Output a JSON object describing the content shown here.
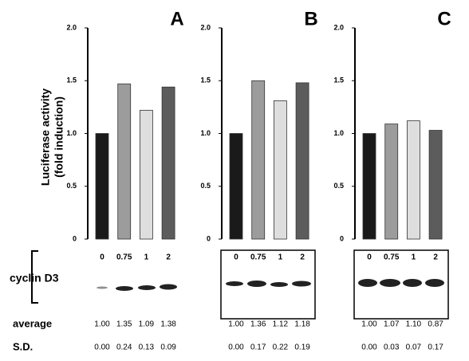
{
  "chart_data": [
    {
      "type": "bar",
      "panel": "A",
      "ylabel": [
        "Luciferase activity",
        "(fold induction)"
      ],
      "categories": [
        "0",
        "0.75",
        "1",
        "2"
      ],
      "values": [
        1.0,
        1.47,
        1.22,
        1.44
      ],
      "colors": [
        "#1a1a1a",
        "#9c9c9c",
        "#dedede",
        "#5c5c5c"
      ],
      "ylim": [
        0,
        2
      ],
      "yticks": [
        0,
        0.5,
        {
          "value": 1,
          "label": "1.0"
        },
        1.5,
        {
          "value": 2,
          "label": "2.0"
        }
      ]
    },
    {
      "type": "bar",
      "panel": "B",
      "categories": [
        "0",
        "0.75",
        "1",
        "2"
      ],
      "values": [
        1.0,
        1.5,
        1.31,
        1.48
      ],
      "colors": [
        "#1a1a1a",
        "#9c9c9c",
        "#dedede",
        "#5c5c5c"
      ],
      "ylim": [
        0,
        2
      ],
      "yticks": [
        0,
        0.5,
        {
          "value": 1,
          "label": "1.0"
        },
        1.5,
        {
          "value": 2,
          "label": "2.0"
        }
      ]
    },
    {
      "type": "bar",
      "panel": "C",
      "categories": [
        "0",
        "0.75",
        "1",
        "2"
      ],
      "values": [
        1.0,
        1.09,
        1.12,
        1.03
      ],
      "colors": [
        "#1a1a1a",
        "#9c9c9c",
        "#dedede",
        "#5c5c5c"
      ],
      "ylim": [
        0,
        2
      ],
      "yticks": [
        0,
        0.5,
        {
          "value": 1,
          "label": "1.0"
        },
        1.5,
        {
          "value": 2,
          "label": "2.0"
        }
      ]
    }
  ],
  "blot_label": "cyclin D3",
  "rows": [
    {
      "label": "average",
      "values": [
        [
          "1.00",
          "1.35",
          "1.09",
          "1.38"
        ],
        [
          "1.00",
          "1.36",
          "1.12",
          "1.18"
        ],
        [
          "1.00",
          "1.07",
          "1.10",
          "0.87"
        ]
      ]
    },
    {
      "label": "S.D.",
      "values": [
        [
          "0.00",
          "0.24",
          "0.13",
          "0.09"
        ],
        [
          "0.00",
          "0.17",
          "0.22",
          "0.19"
        ],
        [
          "0.00",
          "0.03",
          "0.07",
          "0.17"
        ]
      ]
    }
  ]
}
